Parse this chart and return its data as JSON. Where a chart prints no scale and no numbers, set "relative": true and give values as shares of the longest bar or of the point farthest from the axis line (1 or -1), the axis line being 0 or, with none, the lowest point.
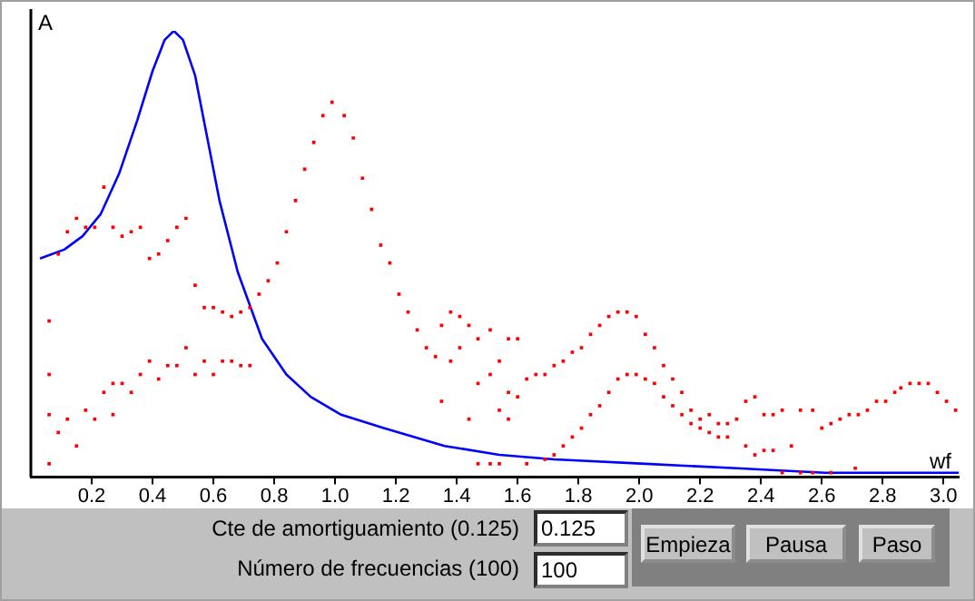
{
  "chart_data": {
    "type": "line",
    "relative": true,
    "xlabel": "wf",
    "ylabel": "A",
    "xlim": [
      0,
      3.05
    ],
    "xticks": [
      {
        "value": 0.2,
        "label": "0.2"
      },
      {
        "value": 0.4,
        "label": "0.4"
      },
      {
        "value": 0.6,
        "label": "0.6"
      },
      {
        "value": 0.8,
        "label": "0.8"
      },
      {
        "value": 1.0,
        "label": "1.0"
      },
      {
        "value": 1.2,
        "label": "1.2"
      },
      {
        "value": 1.4,
        "label": "1.4"
      },
      {
        "value": 1.6,
        "label": "1.6"
      },
      {
        "value": 1.8,
        "label": "1.8"
      },
      {
        "value": 2.0,
        "label": "2.0"
      },
      {
        "value": 2.2,
        "label": "2.2"
      },
      {
        "value": 2.4,
        "label": "2.4"
      },
      {
        "value": 2.6,
        "label": "2.6"
      },
      {
        "value": 2.8,
        "label": "2.8"
      },
      {
        "value": 3.0,
        "label": "3.0"
      }
    ],
    "grid": false,
    "legend": false,
    "annotations": [
      "Cte de amortiguamiento (0.125)",
      "Número de frecuencias (100)",
      "0.125",
      "100",
      "Empieza",
      "Pausa",
      "Paso"
    ],
    "series": [
      {
        "type": "line",
        "color": "#0000ff",
        "marker": "none",
        "x": [
          0.03,
          0.11,
          0.17,
          0.23,
          0.29,
          0.35,
          0.4,
          0.44,
          0.47,
          0.5,
          0.54,
          0.58,
          0.62,
          0.68,
          0.76,
          0.84,
          0.92,
          1.02,
          1.16,
          1.36,
          1.54,
          1.72,
          2.02,
          2.32,
          2.61,
          3.05
        ],
        "values": [
          0.49,
          0.51,
          0.54,
          0.59,
          0.68,
          0.8,
          0.91,
          0.98,
          1,
          0.98,
          0.9,
          0.76,
          0.62,
          0.46,
          0.31,
          0.23,
          0.18,
          0.14,
          0.11,
          0.07,
          0.05,
          0.04,
          0.03,
          0.02,
          0.01,
          0.01
        ]
      },
      {
        "type": "scatter",
        "color": "#ff0000",
        "marker": "square",
        "x": [
          0.87,
          0.9,
          0.93,
          0.96,
          0.99,
          1.03,
          1.06,
          1.09,
          1.12,
          1.15,
          1.18,
          1.21,
          1.24,
          1.27,
          1.3,
          1.33,
          0.84,
          0.81,
          0.78,
          0.75,
          0.72,
          0.69,
          0.66,
          0.63,
          0.6,
          0.57,
          0.54,
          0.51,
          0.48,
          0.45,
          0.42,
          0.39,
          0.36,
          0.33,
          0.3,
          0.27,
          0.24,
          0.21,
          0.18,
          0.15,
          0.12,
          0.09,
          0.06,
          0.06,
          0.06,
          0.06,
          0.09,
          0.12,
          0.15,
          0.18,
          0.21,
          0.24,
          0.27,
          0.27,
          0.3,
          0.33,
          0.36,
          0.39,
          0.42,
          0.45,
          0.48,
          0.51,
          0.54,
          0.57,
          0.6,
          0.63,
          0.66,
          0.69,
          0.72,
          1.35,
          1.35,
          1.38,
          1.38,
          1.41,
          1.41,
          1.44,
          1.44,
          1.47,
          1.47,
          1.47,
          1.51,
          1.51,
          1.51,
          1.54,
          1.54,
          1.57,
          1.57,
          1.6,
          1.6,
          1.63,
          1.66,
          1.69,
          1.72,
          1.75,
          1.78,
          1.81,
          1.84,
          1.87,
          1.9,
          1.93,
          1.96,
          1.99,
          2.02,
          2.05,
          2.08,
          2.11,
          2.14,
          2.17,
          2.2,
          2.23,
          2.26,
          2.29,
          2.32,
          2.35,
          2.38,
          2.41,
          2.44,
          2.47,
          2.5,
          2.53,
          2.57,
          2.6,
          2.63,
          2.66,
          2.69,
          2.72,
          2.75,
          2.78,
          2.81,
          2.84,
          2.86,
          2.89,
          2.92,
          2.95,
          2.98,
          3.01,
          3.04,
          1.54,
          1.57,
          1.63,
          1.69,
          1.72,
          1.75,
          1.78,
          1.81,
          1.84,
          1.87,
          1.9,
          1.93,
          1.96,
          1.99,
          2.02,
          2.05,
          2.08,
          2.11,
          2.14,
          2.17,
          2.2,
          2.23,
          2.26,
          2.29,
          2.35,
          2.38,
          2.41,
          2.44,
          2.47,
          2.53,
          2.57,
          2.63,
          2.71
        ],
        "values": [
          0.62,
          0.69,
          0.75,
          0.81,
          0.84,
          0.81,
          0.76,
          0.67,
          0.6,
          0.52,
          0.48,
          0.41,
          0.37,
          0.33,
          0.29,
          0.27,
          0.55,
          0.48,
          0.44,
          0.41,
          0.38,
          0.37,
          0.36,
          0.37,
          0.38,
          0.38,
          0.43,
          0.58,
          0.56,
          0.53,
          0.5,
          0.49,
          0.56,
          0.55,
          0.54,
          0.56,
          0.65,
          0.56,
          0.56,
          0.58,
          0.55,
          0.5,
          0.35,
          0.23,
          0.14,
          0.03,
          0.1,
          0.13,
          0.07,
          0.15,
          0.13,
          0.19,
          0.14,
          0.21,
          0.21,
          0.19,
          0.23,
          0.26,
          0.22,
          0.25,
          0.25,
          0.29,
          0.23,
          0.26,
          0.23,
          0.26,
          0.26,
          0.25,
          0.25,
          0.34,
          0.17,
          0.37,
          0.26,
          0.36,
          0.29,
          0.34,
          0.13,
          0.31,
          0.21,
          0.03,
          0.33,
          0.23,
          0.03,
          0.26,
          0.03,
          0.19,
          0.31,
          0.31,
          0.18,
          0.22,
          0.23,
          0.23,
          0.25,
          0.26,
          0.28,
          0.29,
          0.32,
          0.34,
          0.36,
          0.37,
          0.37,
          0.36,
          0.32,
          0.29,
          0.25,
          0.22,
          0.19,
          0.15,
          0.13,
          0.14,
          0.12,
          0.12,
          0.13,
          0.17,
          0.18,
          0.14,
          0.14,
          0.15,
          0.07,
          0.15,
          0.15,
          0.11,
          0.12,
          0.13,
          0.14,
          0.14,
          0.15,
          0.17,
          0.17,
          0.19,
          0.2,
          0.21,
          0.21,
          0.21,
          0.19,
          0.17,
          0.15,
          0.15,
          0.13,
          0.03,
          0.04,
          0.05,
          0.07,
          0.09,
          0.11,
          0.14,
          0.16,
          0.19,
          0.22,
          0.23,
          0.23,
          0.22,
          0.21,
          0.18,
          0.16,
          0.14,
          0.12,
          0.11,
          0.1,
          0.09,
          0.09,
          0.07,
          0.05,
          0.06,
          0.06,
          0.01,
          0.01,
          0.01,
          0.01,
          0.02
        ]
      }
    ]
  }
}
